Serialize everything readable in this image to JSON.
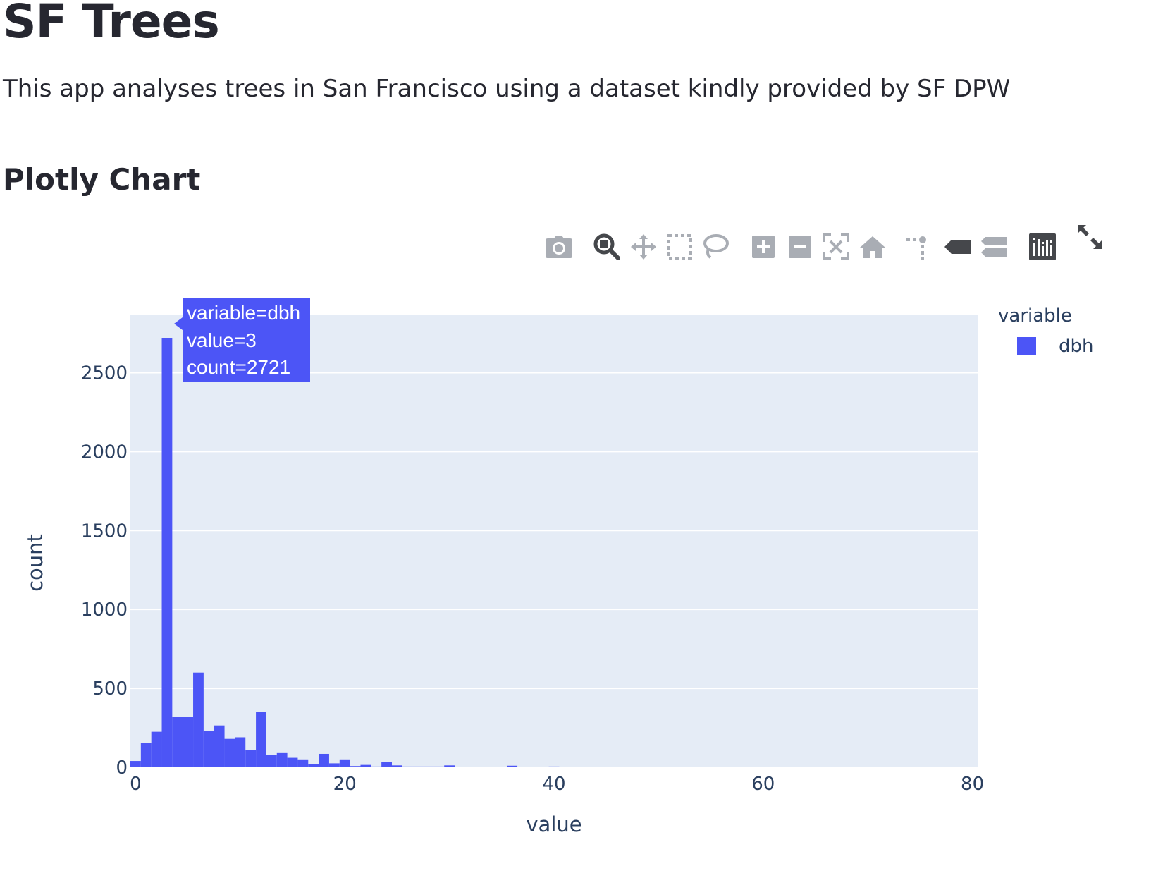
{
  "header": {
    "title": "SF Trees",
    "description": "This app analyses trees in San Francisco using a dataset kindly provided by SF DPW"
  },
  "section": {
    "title": "Plotly Chart"
  },
  "modebar": {
    "buttons": [
      {
        "name": "camera-icon",
        "label": "Download plot as a png"
      },
      {
        "name": "zoom-icon",
        "label": "Zoom"
      },
      {
        "name": "pan-icon",
        "label": "Pan"
      },
      {
        "name": "box-select-icon",
        "label": "Box Select"
      },
      {
        "name": "lasso-select-icon",
        "label": "Lasso Select"
      },
      {
        "name": "zoom-in-icon",
        "label": "Zoom in"
      },
      {
        "name": "zoom-out-icon",
        "label": "Zoom out"
      },
      {
        "name": "autoscale-icon",
        "label": "Autoscale"
      },
      {
        "name": "reset-axes-icon",
        "label": "Reset axes"
      },
      {
        "name": "spike-lines-icon",
        "label": "Toggle Spike Lines"
      },
      {
        "name": "hover-closest-icon",
        "label": "Show closest data on hover"
      },
      {
        "name": "hover-compare-icon",
        "label": "Compare data on hover"
      },
      {
        "name": "plotly-logo-icon",
        "label": "Produced with Plotly"
      },
      {
        "name": "fullscreen-icon",
        "label": "View fullscreen"
      }
    ]
  },
  "colors": {
    "bar": "#4c55f6",
    "plot_bg": "#e5ecf6",
    "grid": "#ffffff",
    "text": "#2a3f5f",
    "icon": "#a9adb4",
    "icon_active": "#45474b"
  },
  "chart_data": {
    "type": "bar",
    "xlabel": "value",
    "ylabel": "count",
    "xlim": [
      -0.5,
      80.5
    ],
    "ylim": [
      0,
      2864
    ],
    "xticks": [
      "0",
      "20",
      "40",
      "60",
      "80"
    ],
    "yticks": [
      "0",
      "500",
      "1000",
      "1500",
      "2000",
      "2500"
    ],
    "grid": true,
    "legend": {
      "title": "variable",
      "entries": [
        "dbh"
      ],
      "position": "top-right"
    },
    "series": [
      {
        "name": "dbh",
        "x": [
          0,
          1,
          2,
          3,
          4,
          5,
          6,
          7,
          8,
          9,
          10,
          11,
          12,
          13,
          14,
          15,
          16,
          17,
          18,
          19,
          20,
          21,
          22,
          23,
          24,
          25,
          26,
          27,
          28,
          29,
          30,
          32,
          34,
          35,
          36,
          38,
          40,
          43,
          45,
          50,
          60,
          70,
          80
        ],
        "values": [
          40,
          155,
          225,
          2721,
          320,
          320,
          600,
          230,
          265,
          180,
          190,
          110,
          350,
          80,
          90,
          60,
          50,
          20,
          85,
          25,
          50,
          8,
          15,
          5,
          35,
          12,
          5,
          5,
          5,
          5,
          12,
          3,
          4,
          4,
          10,
          4,
          5,
          3,
          4,
          3,
          2,
          2,
          2
        ]
      }
    ],
    "hover": {
      "lines": [
        "variable=dbh",
        "value=3",
        "count=2721"
      ]
    }
  }
}
